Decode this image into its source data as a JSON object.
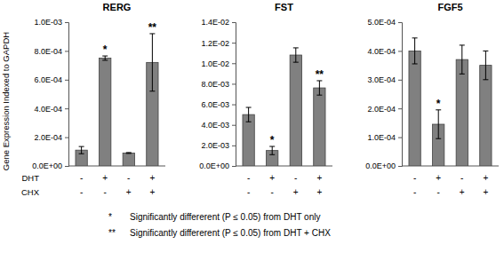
{
  "figure": {
    "y_label": "Gene Expression Indexed to GAPDH",
    "category_levels": [
      "DHT",
      "CHX"
    ],
    "notes": [
      {
        "symbol": "*",
        "text": "Significantly differerent (P ≤ 0.05) from DHT only"
      },
      {
        "symbol": "**",
        "text": "Significantly differerent (P ≤ 0.05) from DHT + CHX"
      }
    ]
  },
  "chart_data": [
    {
      "type": "bar",
      "title": "RERG",
      "categories": [
        [
          "-",
          "-"
        ],
        [
          "+",
          "-"
        ],
        [
          "-",
          "+"
        ],
        [
          "+",
          "+"
        ]
      ],
      "values": [
        0.00011,
        0.00075,
        9e-05,
        0.00072
      ],
      "errors": [
        2.5e-05,
        1.5e-05,
        3e-06,
        0.0002
      ],
      "color": "#808080",
      "ylim": [
        0,
        0.001
      ],
      "yticks": [
        {
          "value": 0,
          "label": "0.0E+00"
        },
        {
          "value": 0.0002,
          "label": "2.0E-04"
        },
        {
          "value": 0.0004,
          "label": "4.0E-04"
        },
        {
          "value": 0.0006,
          "label": "6.0E-04"
        },
        {
          "value": 0.0008,
          "label": "8.0E-04"
        },
        {
          "value": 0.001,
          "label": "1.0E-03"
        }
      ],
      "annotations": [
        {
          "index": 1,
          "text": "*"
        },
        {
          "index": 3,
          "text": "**"
        }
      ]
    },
    {
      "type": "bar",
      "title": "FST",
      "categories": [
        [
          "-",
          "-"
        ],
        [
          "+",
          "-"
        ],
        [
          "-",
          "+"
        ],
        [
          "+",
          "+"
        ]
      ],
      "values": [
        0.005,
        0.0015,
        0.0108,
        0.0076
      ],
      "errors": [
        0.0007,
        0.0004,
        0.0007,
        0.0007
      ],
      "color": "#808080",
      "ylim": [
        0,
        0.014
      ],
      "yticks": [
        {
          "value": 0,
          "label": "0.0E+00"
        },
        {
          "value": 0.002,
          "label": "2.0E-03"
        },
        {
          "value": 0.004,
          "label": "4.0E-03"
        },
        {
          "value": 0.006,
          "label": "6.0E-03"
        },
        {
          "value": 0.008,
          "label": "8.0E-03"
        },
        {
          "value": 0.01,
          "label": "1.0E-02"
        },
        {
          "value": 0.012,
          "label": "1.2E-02"
        },
        {
          "value": 0.014,
          "label": "1.4E-02"
        }
      ],
      "annotations": [
        {
          "index": 1,
          "text": "*"
        },
        {
          "index": 3,
          "text": "**"
        }
      ]
    },
    {
      "type": "bar",
      "title": "FGF5",
      "categories": [
        [
          "-",
          "-"
        ],
        [
          "+",
          "-"
        ],
        [
          "-",
          "+"
        ],
        [
          "+",
          "+"
        ]
      ],
      "values": [
        0.0004,
        0.000145,
        0.00037,
        0.00035
      ],
      "errors": [
        4.5e-05,
        5e-05,
        5e-05,
        5e-05
      ],
      "color": "#808080",
      "ylim": [
        0,
        0.0005
      ],
      "yticks": [
        {
          "value": 0,
          "label": "0.0E+00"
        },
        {
          "value": 0.0001,
          "label": "1.0E-04"
        },
        {
          "value": 0.0002,
          "label": "2.0E-04"
        },
        {
          "value": 0.0003,
          "label": "3.0E-04"
        },
        {
          "value": 0.0004,
          "label": "4.0E-04"
        },
        {
          "value": 0.0005,
          "label": "5.0E-04"
        }
      ],
      "annotations": [
        {
          "index": 1,
          "text": "*"
        }
      ]
    }
  ]
}
